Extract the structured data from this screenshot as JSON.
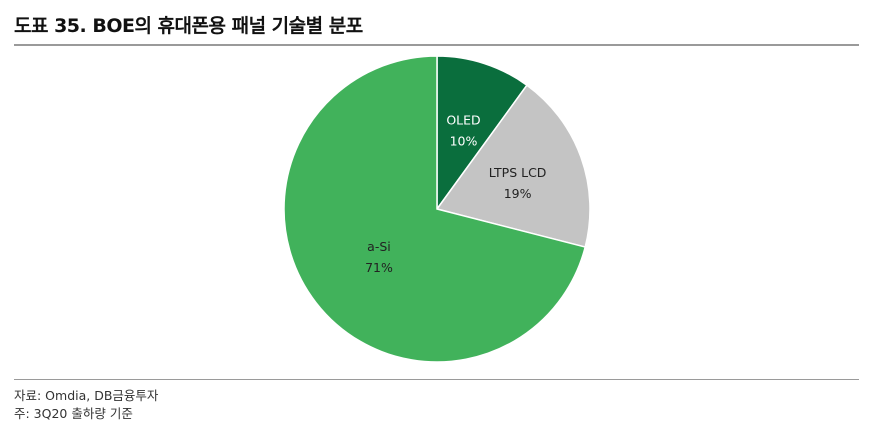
{
  "title": "도표 35. BOE의 휴대폰용 패널 기술별 분포",
  "footer": {
    "source": "자료: Omdia, DB금융투자",
    "note": "주: 3Q20 출하량 기준"
  },
  "chart_data": {
    "type": "pie",
    "slices": [
      {
        "label": "OLED",
        "value": 10,
        "value_label": "10%",
        "color": "#0a6e3d",
        "label_color": "#ffffff"
      },
      {
        "label": "LTPS LCD",
        "value": 19,
        "value_label": "19%",
        "color": "#c4c4c4",
        "label_color": "#222222"
      },
      {
        "label": "a-Si",
        "value": 71,
        "value_label": "71%",
        "color": "#41b25b",
        "label_color": "#222222"
      }
    ],
    "start": "12 o'clock",
    "direction": "clockwise"
  }
}
